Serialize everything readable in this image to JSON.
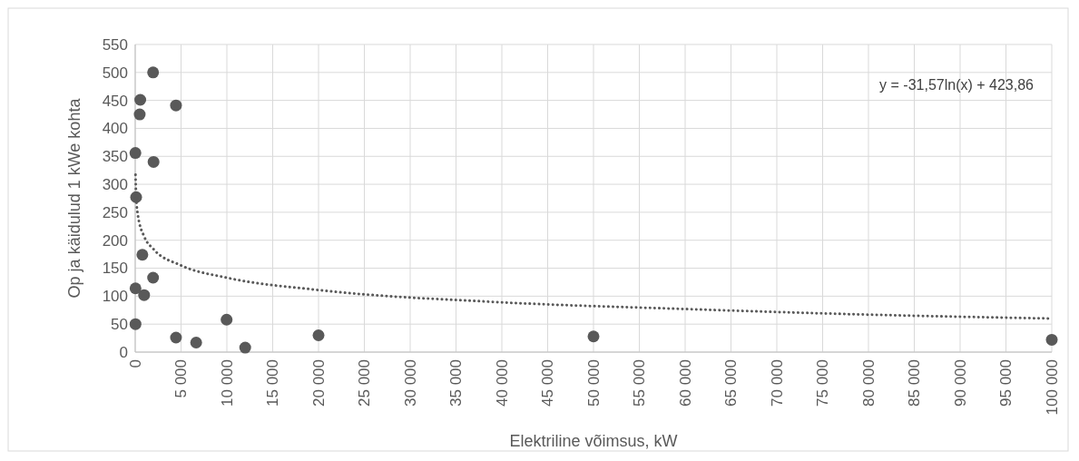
{
  "chart_data": {
    "type": "scatter",
    "xlabel": "Elektriline võimsus, kW",
    "ylabel": "Op ja käidulud 1 kWe kohta",
    "xlim": [
      0,
      100000
    ],
    "xticks": [
      {
        "value": 0,
        "label": "0"
      },
      {
        "value": 5000,
        "label": "5 000"
      },
      {
        "value": 10000,
        "label": "10 000"
      },
      {
        "value": 15000,
        "label": "15 000"
      },
      {
        "value": 20000,
        "label": "20 000"
      },
      {
        "value": 25000,
        "label": "25 000"
      },
      {
        "value": 30000,
        "label": "30 000"
      },
      {
        "value": 35000,
        "label": "35 000"
      },
      {
        "value": 40000,
        "label": "40 000"
      },
      {
        "value": 45000,
        "label": "45 000"
      },
      {
        "value": 50000,
        "label": "50 000"
      },
      {
        "value": 55000,
        "label": "55 000"
      },
      {
        "value": 60000,
        "label": "60 000"
      },
      {
        "value": 65000,
        "label": "65 000"
      },
      {
        "value": 70000,
        "label": "70 000"
      },
      {
        "value": 75000,
        "label": "75 000"
      },
      {
        "value": 80000,
        "label": "80 000"
      },
      {
        "value": 85000,
        "label": "85 000"
      },
      {
        "value": 90000,
        "label": "90 000"
      },
      {
        "value": 95000,
        "label": "95 000"
      },
      {
        "value": 100000,
        "label": "100 000"
      }
    ],
    "ylim": [
      0,
      550
    ],
    "yticks": [
      0,
      50,
      100,
      150,
      200,
      250,
      300,
      350,
      400,
      450,
      500,
      550
    ],
    "grid": true,
    "series": [
      {
        "color": "#595959",
        "marker": "circle",
        "x": [
          1950,
          550,
          490,
          4450,
          20,
          2000,
          100,
          780,
          1950,
          30,
          970,
          30,
          4450,
          6650,
          9970,
          12000,
          20000,
          50000,
          100000
        ],
        "values": [
          500,
          451,
          425,
          441,
          356,
          340,
          277,
          174,
          133,
          114,
          102,
          50,
          26,
          17,
          58,
          8,
          30,
          28,
          22
        ]
      },
      {
        "type": "line",
        "color": "#595959",
        "line_style": "dotted",
        "marker": "none",
        "x": [
          30,
          100,
          300,
          1000,
          2000,
          5000,
          10000,
          20000,
          40000,
          60000,
          80000,
          100000
        ],
        "values": [
          317,
          279,
          244,
          206,
          184,
          155,
          133,
          111,
          89,
          77,
          67,
          60
        ]
      }
    ],
    "annotations": [
      "y = -31,57ln(x) + 423,86"
    ]
  }
}
